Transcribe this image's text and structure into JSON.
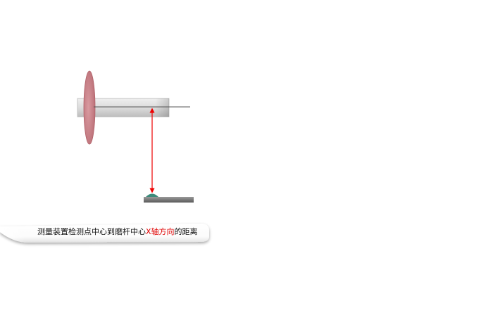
{
  "caption": {
    "prefix": "测量装置检测点中心到磨杆中心",
    "highlight": "X轴方向",
    "suffix": "的距离"
  },
  "colors": {
    "grinding_wheel": "#c87a80",
    "shaft": "#d2d2d2",
    "centerline": "#555555",
    "dimension_arrow": "#ee0000",
    "probe_tip": "#3c8a7a",
    "probe_base": "#777777",
    "highlight_text": "#e00000"
  }
}
